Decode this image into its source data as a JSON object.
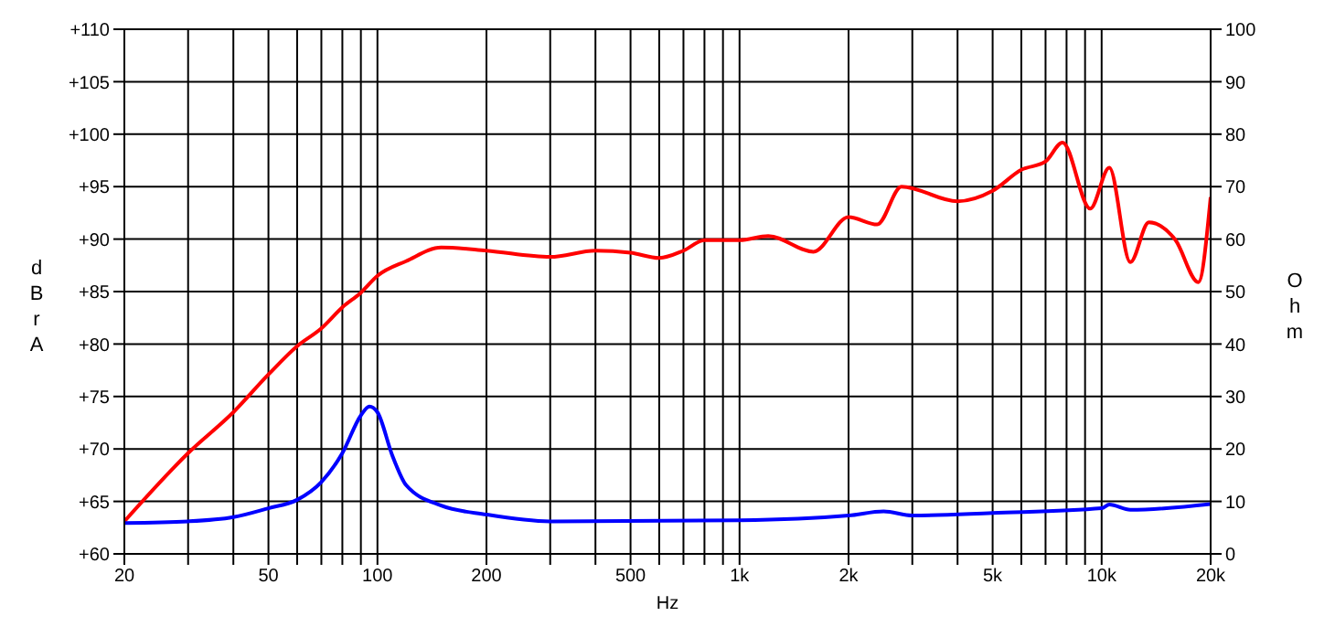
{
  "chart_data": {
    "type": "line",
    "xlabel": "Hz",
    "ylabel": "dBrA",
    "y2label": "Ohm",
    "log": "x",
    "grid": true,
    "marker": "none",
    "xlim": [
      20,
      20000
    ],
    "xticks": [
      20,
      {
        "value": 30,
        "label": null
      },
      {
        "value": 40,
        "label": null
      },
      50,
      {
        "value": 60,
        "label": null
      },
      {
        "value": 70,
        "label": null
      },
      {
        "value": 80,
        "label": null
      },
      {
        "value": 90,
        "label": null
      },
      100,
      200,
      {
        "value": 300,
        "label": null
      },
      {
        "value": 400,
        "label": null
      },
      500,
      {
        "value": 600,
        "label": null
      },
      {
        "value": 700,
        "label": null
      },
      {
        "value": 800,
        "label": null
      },
      {
        "value": 900,
        "label": null
      },
      {
        "value": 1000,
        "label": "1k"
      },
      {
        "value": 2000,
        "label": "2k"
      },
      {
        "value": 3000,
        "label": null
      },
      {
        "value": 4000,
        "label": null
      },
      {
        "value": 5000,
        "label": "5k"
      },
      {
        "value": 6000,
        "label": null
      },
      {
        "value": 7000,
        "label": null
      },
      {
        "value": 8000,
        "label": null
      },
      {
        "value": 9000,
        "label": null
      },
      {
        "value": 10000,
        "label": "10k"
      },
      {
        "value": 20000,
        "label": "20k"
      }
    ],
    "ylim": [
      60,
      110
    ],
    "yticks": [
      {
        "value": 60,
        "label": "+60"
      },
      {
        "value": 65,
        "label": "+65"
      },
      {
        "value": 70,
        "label": "+70"
      },
      {
        "value": 75,
        "label": "+75"
      },
      {
        "value": 80,
        "label": "+80"
      },
      {
        "value": 85,
        "label": "+85"
      },
      {
        "value": 90,
        "label": "+90"
      },
      {
        "value": 95,
        "label": "+95"
      },
      {
        "value": 100,
        "label": "+100"
      },
      {
        "value": 105,
        "label": "+105"
      },
      {
        "value": 110,
        "label": "+110"
      }
    ],
    "y2lim": [
      0,
      100
    ],
    "y2ticks": [
      0,
      10,
      20,
      30,
      40,
      50,
      60,
      70,
      80,
      90,
      100
    ],
    "series": [
      {
        "color": "#ff0000",
        "x": [
          20,
          30,
          40,
          50,
          60,
          70,
          80,
          90,
          100,
          120,
          150,
          200,
          300,
          400,
          500,
          600,
          700,
          800,
          1000,
          1200,
          1600,
          2000,
          2400,
          2800,
          4000,
          5000,
          6000,
          7000,
          7800,
          9300,
          10500,
          12000,
          13500,
          16000,
          18500,
          20000
        ],
        "values": [
          63.1,
          69.6,
          73.5,
          77.1,
          79.8,
          81.5,
          83.5,
          84.9,
          86.5,
          87.9,
          89.2,
          88.9,
          88.3,
          88.9,
          88.7,
          88.2,
          88.9,
          89.9,
          89.9,
          90.3,
          88.8,
          92.1,
          91.4,
          95.0,
          93.6,
          94.6,
          96.6,
          97.4,
          99.2,
          92.9,
          96.8,
          87.8,
          91.6,
          89.9,
          85.9,
          94.0
        ]
      },
      {
        "color": "#0000ff",
        "axis": "y2",
        "x": [
          20,
          30,
          40,
          50,
          60,
          70,
          80,
          90,
          95,
          100,
          110,
          120,
          150,
          200,
          300,
          1000,
          2000,
          2500,
          3000,
          5000,
          10000,
          10500,
          12000,
          20000
        ],
        "values": [
          5.9,
          6.2,
          7.0,
          8.7,
          10.3,
          13.7,
          19.2,
          26.4,
          28.1,
          27.0,
          18.7,
          13.1,
          9.2,
          7.5,
          6.2,
          6.4,
          7.3,
          8.1,
          7.3,
          7.8,
          8.7,
          9.4,
          8.4,
          9.5
        ]
      }
    ]
  }
}
